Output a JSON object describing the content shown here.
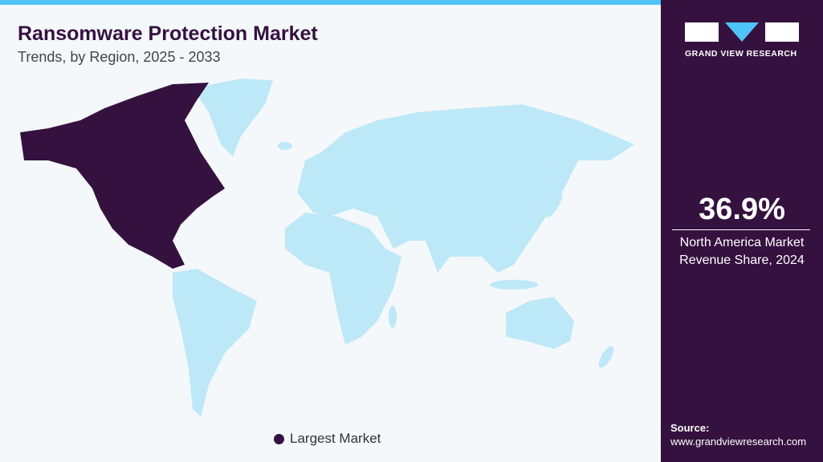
{
  "header": {
    "title": "Ransomware Protection Market",
    "subtitle": "Trends, by Region, 2025 - 2033"
  },
  "legend": {
    "label": "Largest Market"
  },
  "logo": {
    "text": "GRAND VIEW RESEARCH"
  },
  "stat": {
    "value": "36.9%",
    "label_lines": [
      "North America Market",
      "Revenue Share, 2024"
    ]
  },
  "source": {
    "label": "Source:",
    "url": "www.grandviewresearch.com"
  }
}
